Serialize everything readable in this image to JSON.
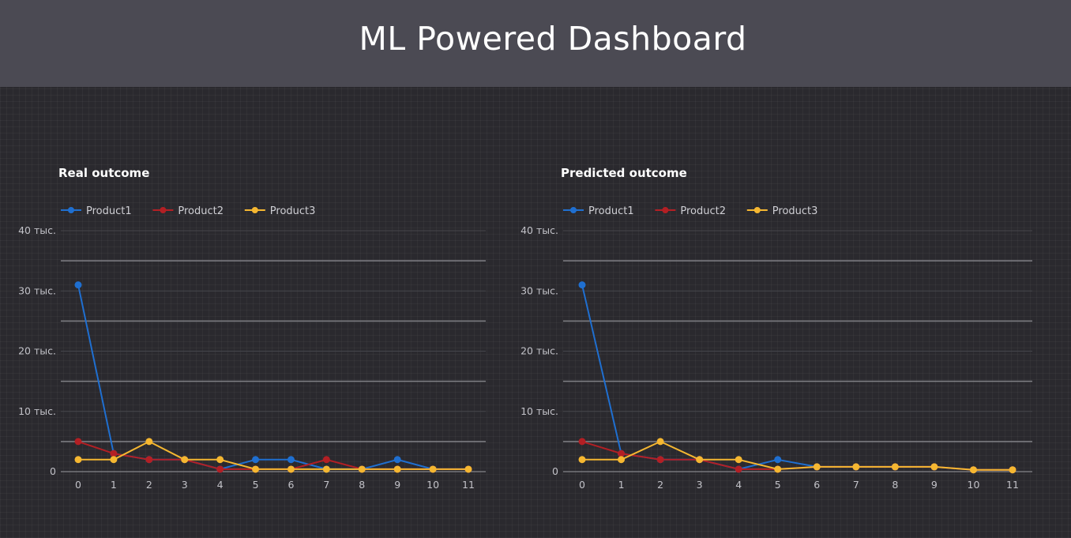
{
  "header": {
    "title": "ML Powered Dashboard"
  },
  "colors": {
    "Product1": "#1f6fd0",
    "Product2": "#b31f24",
    "Product3": "#f5b731",
    "major_grid": "#808086",
    "minor_grid": "#45454b",
    "axis": "#9a9aa0"
  },
  "chart_data": [
    {
      "type": "line",
      "title": "Real outcome",
      "xlabel": "",
      "ylabel": "",
      "ylim": [
        0,
        40000
      ],
      "y_ticks": [
        0,
        10000,
        20000,
        30000,
        40000
      ],
      "y_tick_labels": [
        "0",
        "10 тыс.",
        "20 тыс.",
        "30 тыс.",
        "40 тыс."
      ],
      "x": [
        0,
        1,
        2,
        3,
        4,
        5,
        6,
        7,
        8,
        9,
        10,
        11
      ],
      "legend_position": "top-left",
      "series": [
        {
          "name": "Product1",
          "values": [
            31000,
            3000,
            2000,
            2000,
            400,
            2000,
            2000,
            400,
            400,
            2000,
            400,
            400
          ]
        },
        {
          "name": "Product2",
          "values": [
            5000,
            3000,
            2000,
            2000,
            400,
            400,
            400,
            2000,
            400,
            400,
            400,
            400
          ]
        },
        {
          "name": "Product3",
          "values": [
            2000,
            2000,
            5000,
            2000,
            2000,
            400,
            400,
            400,
            400,
            400,
            400,
            400
          ]
        }
      ]
    },
    {
      "type": "line",
      "title": "Predicted outcome",
      "xlabel": "",
      "ylabel": "",
      "ylim": [
        0,
        40000
      ],
      "y_ticks": [
        0,
        10000,
        20000,
        30000,
        40000
      ],
      "y_tick_labels": [
        "0",
        "10 тыс.",
        "20 тыс.",
        "30 тыс.",
        "40 тыс."
      ],
      "x": [
        0,
        1,
        2,
        3,
        4,
        5,
        6,
        7,
        8,
        9,
        10,
        11
      ],
      "legend_position": "top-left",
      "series": [
        {
          "name": "Product1",
          "values": [
            31000,
            3000,
            2000,
            2000,
            400,
            2000,
            800,
            800,
            800,
            800,
            300,
            300
          ]
        },
        {
          "name": "Product2",
          "values": [
            5000,
            3000,
            2000,
            2000,
            400,
            400,
            800,
            800,
            800,
            800,
            300,
            300
          ]
        },
        {
          "name": "Product3",
          "values": [
            2000,
            2000,
            5000,
            2000,
            2000,
            400,
            800,
            800,
            800,
            800,
            300,
            300
          ]
        }
      ]
    }
  ]
}
